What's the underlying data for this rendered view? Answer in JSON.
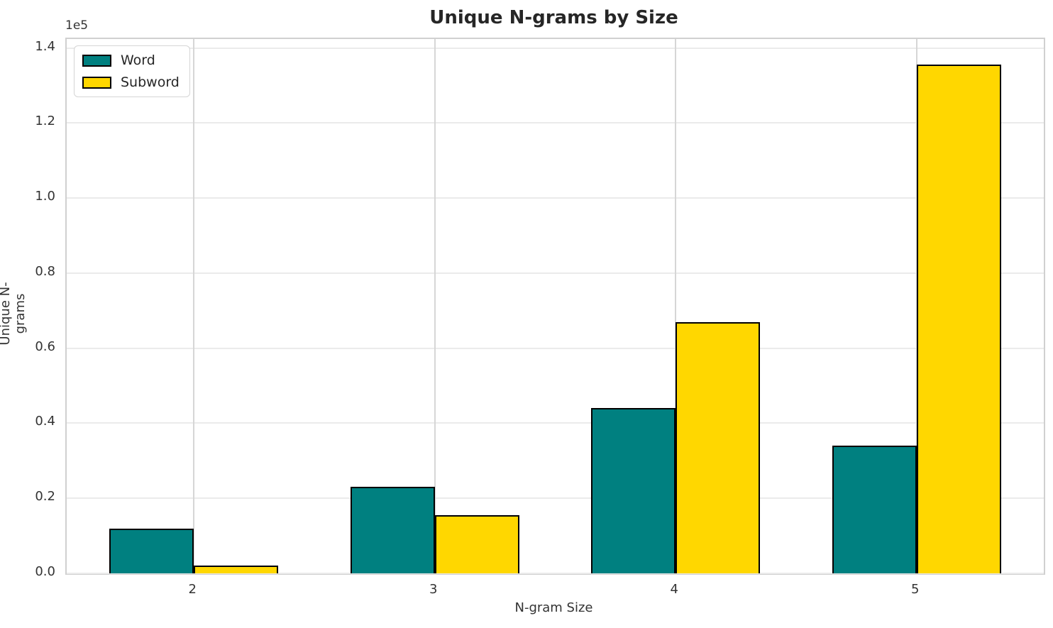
{
  "chart_data": {
    "type": "bar",
    "title": "Unique N-grams by Size",
    "xlabel": "N-gram Size",
    "ylabel": "Unique N-grams",
    "offset_text": "1e5",
    "categories": [
      "2",
      "3",
      "4",
      "5"
    ],
    "series": [
      {
        "name": "Word",
        "color": "#008080",
        "values": [
          12000,
          23000,
          44000,
          34000
        ]
      },
      {
        "name": "Subword",
        "color": "#FFD700",
        "values": [
          2000,
          15600,
          67000,
          135600
        ]
      }
    ],
    "bar_edge_color": "#000000",
    "bar_width_ratio": 0.35,
    "ylim": [
      0,
      142400
    ],
    "xlim": [
      -0.528,
      3.528
    ],
    "yticks": {
      "values": [
        0,
        20000,
        40000,
        60000,
        80000,
        100000,
        120000,
        140000
      ],
      "labels": [
        "0.0",
        "0.2",
        "0.4",
        "0.6",
        "0.8",
        "1.0",
        "1.2",
        "1.4"
      ]
    },
    "grid": true,
    "legend_position": "upper left"
  }
}
